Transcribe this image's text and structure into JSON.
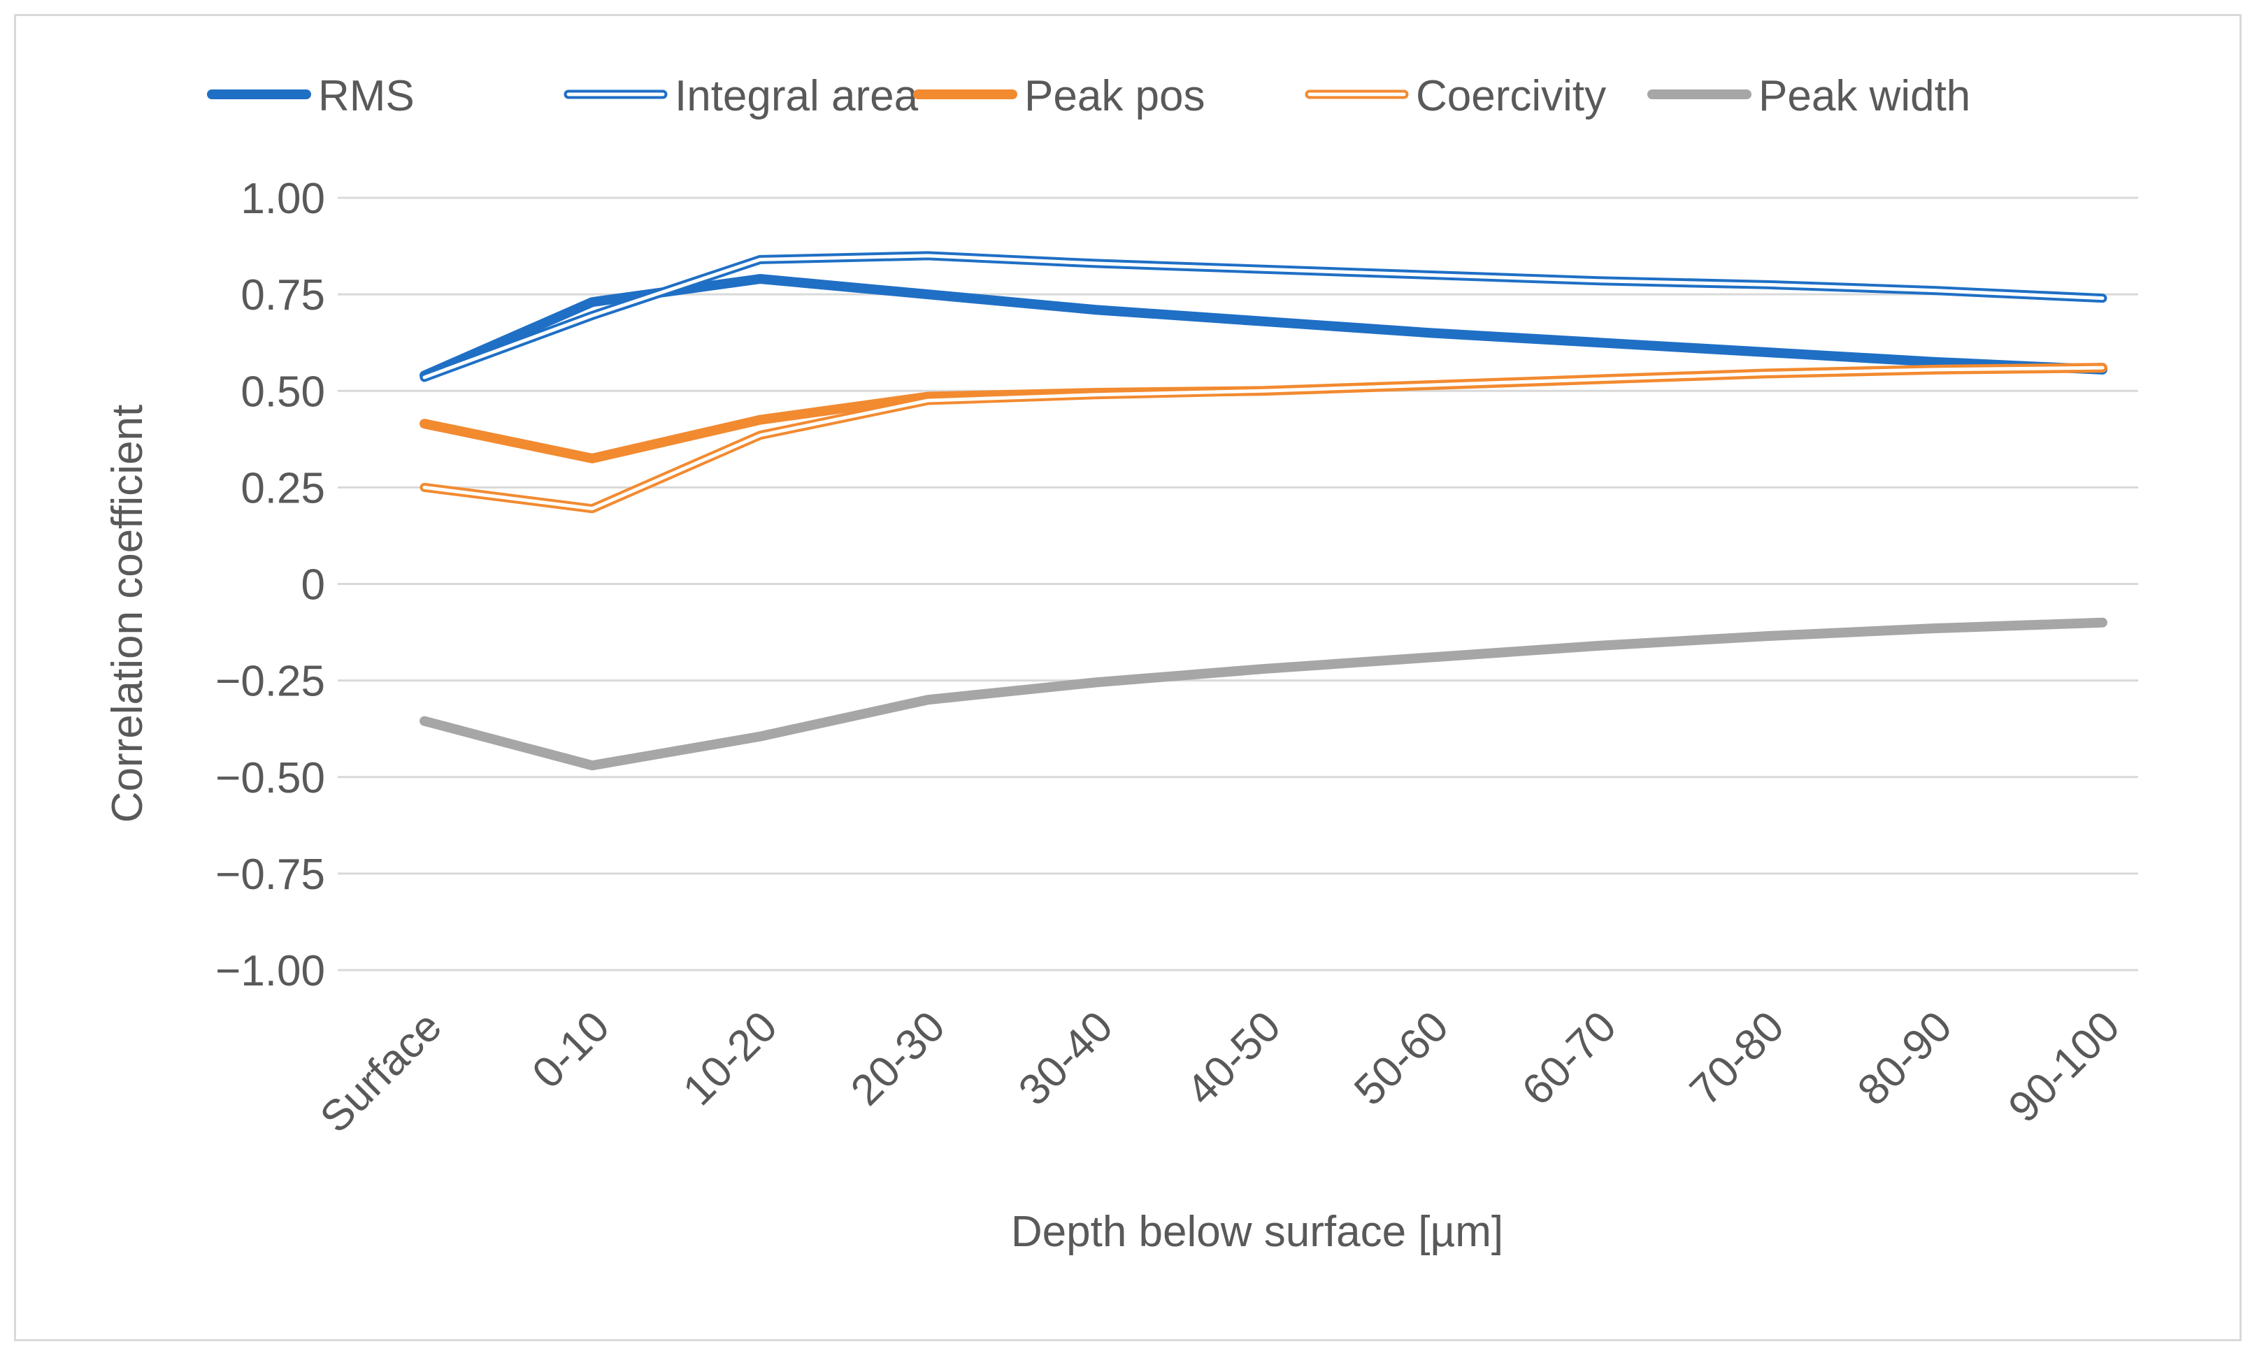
{
  "chart_data": {
    "type": "line",
    "title": "",
    "xlabel": "Depth below surface [µm]",
    "ylabel": "Correlation coefficient",
    "ylim": [
      -1.0,
      1.0
    ],
    "grid": true,
    "legend_position": "top",
    "categories": [
      "Surface",
      "0-10",
      "10-20",
      "20-30",
      "30-40",
      "40-50",
      "50-60",
      "60-70",
      "70-80",
      "80-90",
      "90-100"
    ],
    "yticks": [
      {
        "value": 1.0,
        "label": "1.00"
      },
      {
        "value": 0.75,
        "label": "0.75"
      },
      {
        "value": 0.5,
        "label": "0.50"
      },
      {
        "value": 0.25,
        "label": "0.25"
      },
      {
        "value": 0.0,
        "label": "0"
      },
      {
        "value": -0.25,
        "label": "−0.25"
      },
      {
        "value": -0.5,
        "label": "−0.50"
      },
      {
        "value": -0.75,
        "label": "−0.75"
      },
      {
        "value": -1.0,
        "label": "−1.00"
      }
    ],
    "series": [
      {
        "name": "RMS",
        "style": "solid",
        "color": "#1f6fc5",
        "values": [
          0.54,
          0.73,
          0.79,
          0.75,
          0.71,
          0.68,
          0.65,
          0.625,
          0.6,
          0.575,
          0.555
        ]
      },
      {
        "name": "Integral area",
        "style": "double",
        "color": "#1f6fc5",
        "values": [
          0.535,
          0.695,
          0.84,
          0.85,
          0.83,
          0.815,
          0.8,
          0.785,
          0.775,
          0.76,
          0.74
        ]
      },
      {
        "name": "Peak pos",
        "style": "solid",
        "color": "#f28a30",
        "values": [
          0.415,
          0.325,
          0.425,
          0.485,
          0.495,
          0.5,
          0.515,
          0.53,
          0.545,
          0.555,
          0.56
        ]
      },
      {
        "name": "Coercivity",
        "style": "double",
        "color": "#f28a30",
        "values": [
          0.25,
          0.195,
          0.385,
          0.475,
          0.49,
          0.5,
          0.515,
          0.53,
          0.545,
          0.555,
          0.56
        ]
      },
      {
        "name": "Peak width",
        "style": "solid",
        "color": "#a6a6a6",
        "values": [
          -0.355,
          -0.47,
          -0.395,
          -0.3,
          -0.255,
          -0.22,
          -0.19,
          -0.16,
          -0.135,
          -0.115,
          -0.1
        ]
      }
    ]
  }
}
